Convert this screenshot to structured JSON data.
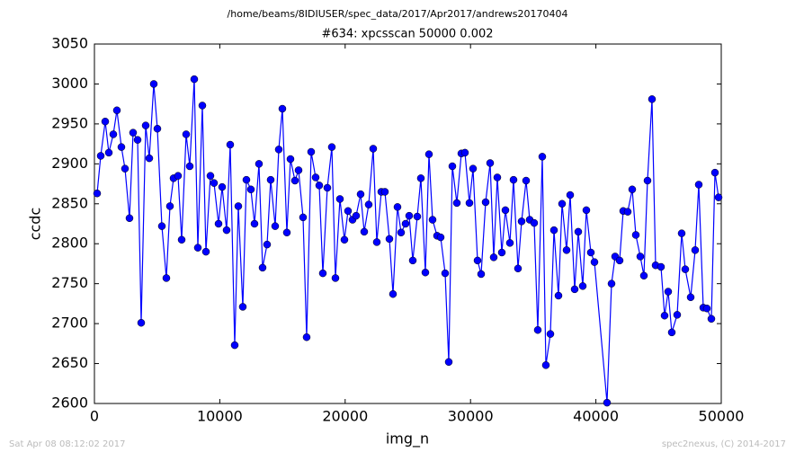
{
  "chart_data": {
    "type": "line",
    "suptitle": "/home/beams/8IDIUSER/spec_data/2017/Apr2017/andrews20170404",
    "title": "#634: xpcsscan 50000 0.002",
    "xlabel": "img_n",
    "ylabel": "ccdc",
    "footer_left": "Sat Apr 08 08:12:02 2017",
    "footer_right": "spec2nexus, (C) 2014-2017",
    "xlim": [
      0,
      50000
    ],
    "xticks": [
      0,
      10000,
      20000,
      30000,
      40000,
      50000
    ],
    "ylim": [
      2600,
      3050
    ],
    "yticks": [
      2600,
      2650,
      2700,
      2750,
      2800,
      2850,
      2900,
      2950,
      3000,
      3050
    ],
    "grid": false,
    "x": [
      215,
      502,
      861,
      1148,
      1506,
      1793,
      2152,
      2439,
      2797,
      3084,
      3443,
      3730,
      4089,
      4376,
      4734,
      5021,
      5380,
      5738,
      6025,
      6312,
      6671,
      6958,
      7316,
      7603,
      7962,
      8249,
      8608,
      8895,
      9253,
      9540,
      9899,
      10186,
      10544,
      10831,
      11190,
      11477,
      11835,
      12122,
      12481,
      12768,
      13126,
      13413,
      13772,
      14059,
      14418,
      14704,
      14991,
      15350,
      15637,
      15996,
      16283,
      16641,
      16928,
      17287,
      17646,
      17933,
      18220,
      18578,
      18937,
      19224,
      19583,
      19941,
      20228,
      20587,
      20874,
      21233,
      21520,
      21878,
      22237,
      22524,
      22883,
      23170,
      23529,
      23816,
      24174,
      24461,
      24820,
      25107,
      25394,
      25752,
      26039,
      26398,
      26685,
      26972,
      27331,
      27618,
      27976,
      28263,
      28550,
      28909,
      29268,
      29555,
      29913,
      30200,
      30559,
      30846,
      31205,
      31564,
      31850,
      32137,
      32496,
      32783,
      33142,
      33429,
      33787,
      34074,
      34433,
      34720,
      35078,
      35365,
      35724,
      36011,
      36370,
      36657,
      37015,
      37302,
      37661,
      37948,
      38307,
      38594,
      38952,
      39239,
      39598,
      39885,
      40889,
      41248,
      41535,
      41893,
      42180,
      42539,
      42898,
      43185,
      43543,
      43830,
      44117,
      44476,
      44763,
      45193,
      45480,
      45767,
      46054,
      46484,
      46843,
      47130,
      47561,
      47919,
      48206,
      48565,
      48852,
      49211,
      49498,
      49785
    ],
    "series": [
      {
        "name": "ccdc",
        "color": "#0000ff",
        "values": [
          2863,
          2910,
          2953,
          2914,
          2937,
          2967,
          2921,
          2894,
          2832,
          2939,
          2930,
          2701,
          2948,
          2907,
          3000,
          2944,
          2822,
          2757,
          2847,
          2882,
          2885,
          2805,
          2937,
          2897,
          3006,
          2795,
          2973,
          2790,
          2885,
          2876,
          2825,
          2871,
          2817,
          2924,
          2673,
          2847,
          2721,
          2880,
          2868,
          2825,
          2900,
          2770,
          2799,
          2880,
          2822,
          2918,
          2969,
          2814,
          2906,
          2879,
          2892,
          2833,
          2683,
          2915,
          2883,
          2873,
          2763,
          2870,
          2921,
          2757,
          2856,
          2805,
          2841,
          2830,
          2835,
          2862,
          2815,
          2849,
          2919,
          2802,
          2865,
          2865,
          2806,
          2737,
          2846,
          2814,
          2825,
          2835,
          2779,
          2834,
          2882,
          2764,
          2912,
          2830,
          2810,
          2808,
          2763,
          2652,
          2897,
          2851,
          2913,
          2914,
          2851,
          2894,
          2779,
          2762,
          2852,
          2901,
          2783,
          2883,
          2789,
          2842,
          2801,
          2880,
          2769,
          2828,
          2879,
          2830,
          2826,
          2692,
          2909,
          2648,
          2687,
          2817,
          2735,
          2850,
          2792,
          2861,
          2743,
          2815,
          2747,
          2842,
          2789,
          2777,
          2601,
          2750,
          2784,
          2779,
          2841,
          2840,
          2868,
          2811,
          2784,
          2760,
          2879,
          2981,
          2773,
          2771,
          2710,
          2740,
          2689,
          2711,
          2813,
          2768,
          2733,
          2792,
          2874,
          2720,
          2719,
          2706,
          2889,
          2858
        ]
      }
    ]
  }
}
